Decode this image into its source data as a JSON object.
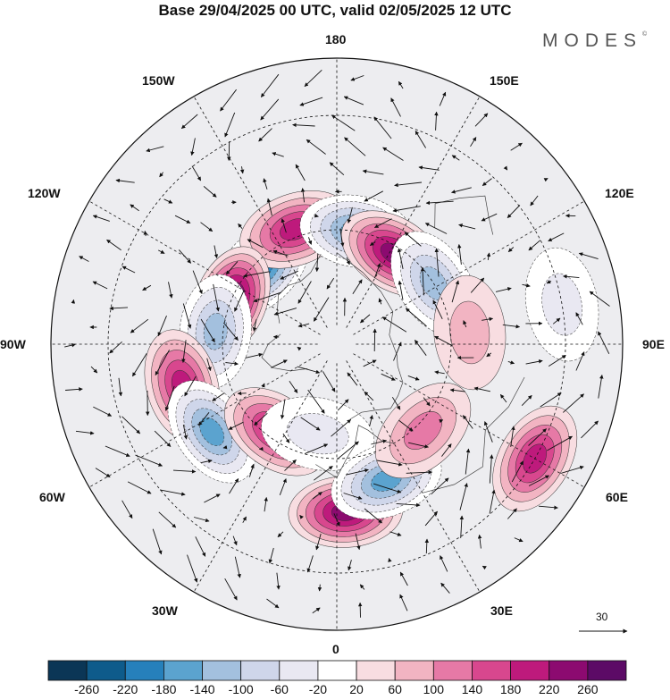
{
  "title": "Base 29/04/2025 00 UTC, valid 02/05/2025 12 UTC",
  "logo": "MODES",
  "logo_mark": "©",
  "longitude_labels": {
    "lon_180": "180",
    "lon_150e": "150E",
    "lon_120e": "120E",
    "lon_90e": "90E",
    "lon_60e": "60E",
    "lon_30e": "30E",
    "lon_0": "0",
    "lon_30w": "30W",
    "lon_60w": "60W",
    "lon_90w": "90W",
    "lon_120w": "120W",
    "lon_150w": "150W"
  },
  "reference_vector": {
    "value": "30"
  },
  "colorbar": {
    "ticks": [
      "-260",
      "-220",
      "-180",
      "-140",
      "-100",
      "-60",
      "-20",
      "20",
      "60",
      "100",
      "140",
      "180",
      "220",
      "260"
    ],
    "colors": [
      "#0b3656",
      "#0e5b8b",
      "#2680bb",
      "#5ba3cf",
      "#a3c0de",
      "#cfd6ea",
      "#e9e8f2",
      "#ffffff",
      "#f8dde1",
      "#f2b4c2",
      "#e679a6",
      "#d8478e",
      "#be1a7c",
      "#8c0a70",
      "#5c0a66"
    ]
  },
  "anomaly_features": [
    {
      "lon": -135,
      "lat": 62,
      "value": -200
    },
    {
      "lon": -160,
      "lat": 58,
      "value": 160
    },
    {
      "lon": 170,
      "lat": 60,
      "value": -160
    },
    {
      "lon": 148,
      "lat": 62,
      "value": 200
    },
    {
      "lon": 122,
      "lat": 60,
      "value": -150
    },
    {
      "lon": 95,
      "lat": 55,
      "value": 60
    },
    {
      "lon": -112,
      "lat": 60,
      "value": 240
    },
    {
      "lon": -96,
      "lat": 58,
      "value": -140
    },
    {
      "lon": -75,
      "lat": 48,
      "value": 160
    },
    {
      "lon": -55,
      "lat": 50,
      "value": -170
    },
    {
      "lon": -35,
      "lat": 62,
      "value": 170
    },
    {
      "lon": -12,
      "lat": 66,
      "value": -60
    },
    {
      "lon": 3,
      "lat": 46,
      "value": 230
    },
    {
      "lon": 20,
      "lat": 52,
      "value": -190
    },
    {
      "lon": 45,
      "lat": 58,
      "value": 100
    },
    {
      "lon": 60,
      "lat": 30,
      "value": 160
    },
    {
      "lon": 100,
      "lat": 30,
      "value": -60
    }
  ]
}
